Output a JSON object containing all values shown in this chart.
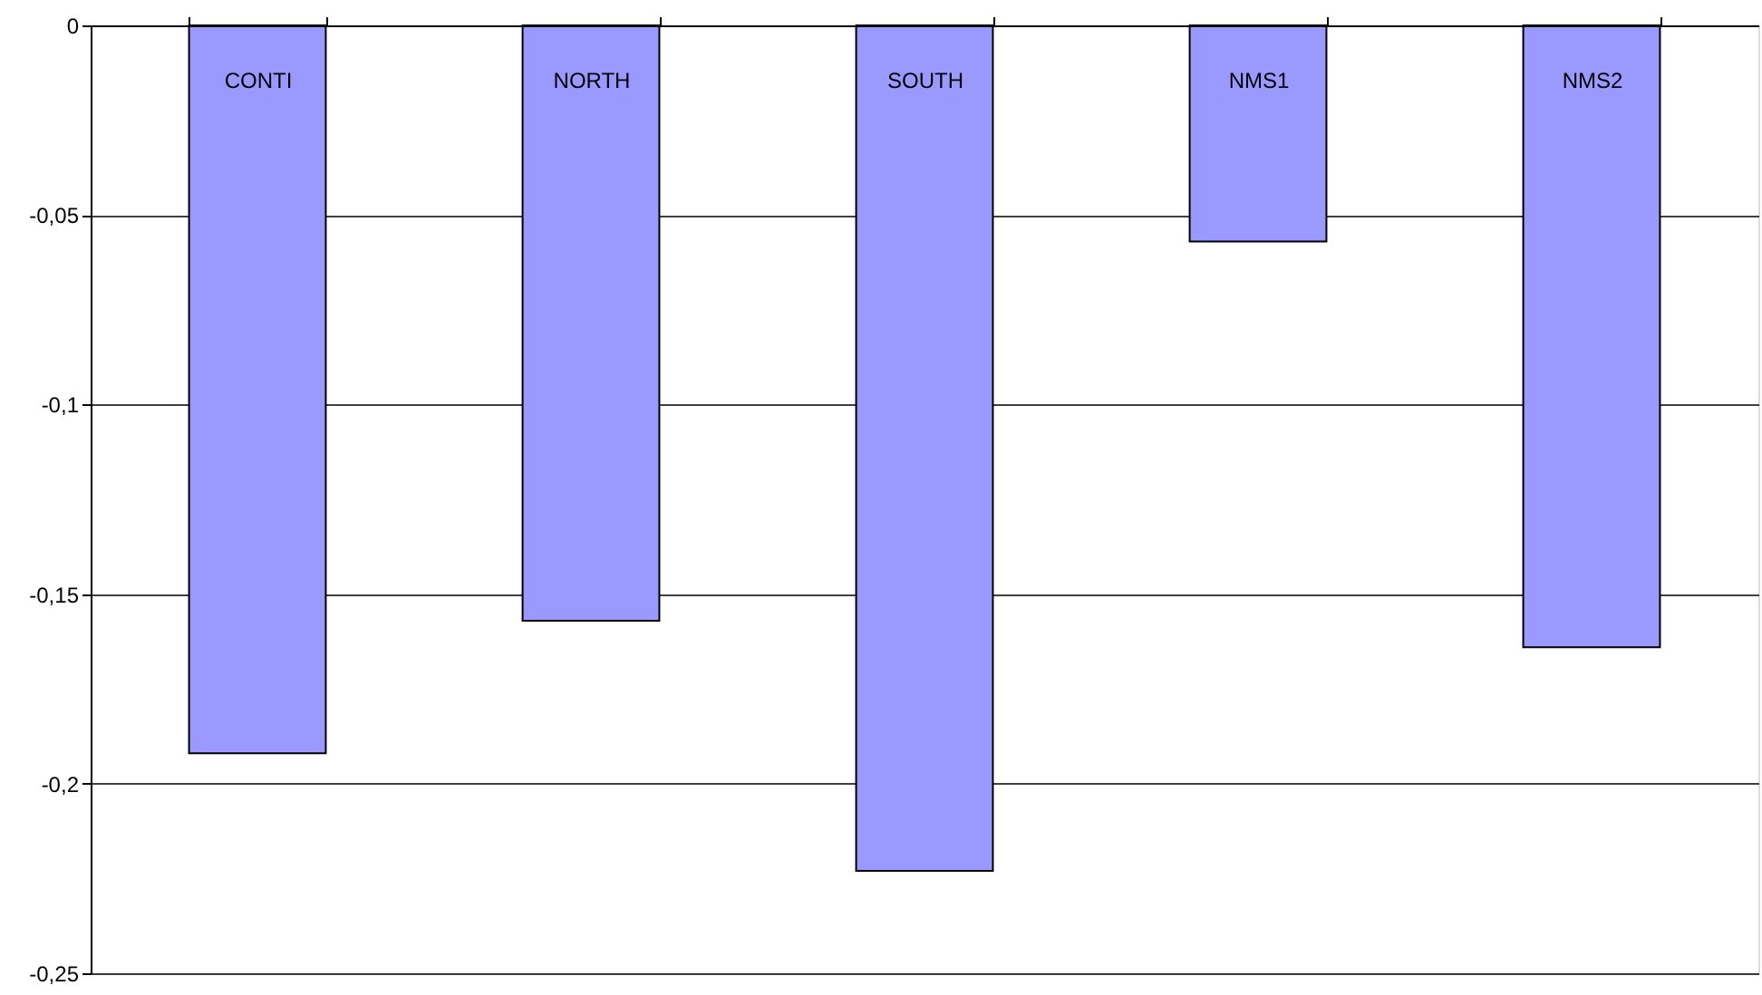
{
  "chart_data": {
    "type": "bar",
    "categories": [
      "CONTI",
      "NORTH",
      "SOUTH",
      "NMS1",
      "NMS2"
    ],
    "values": [
      -0.192,
      -0.157,
      -0.223,
      -0.057,
      -0.164
    ],
    "color": "#9999ff",
    "ylim": [
      -0.25,
      0
    ],
    "yticks": [
      0,
      {
        "value": -0.05,
        "label": "-0,05"
      },
      {
        "value": -0.1,
        "label": "-0,1"
      },
      {
        "value": -0.15,
        "label": "-0,15"
      },
      {
        "value": -0.2,
        "label": "-0,2"
      },
      {
        "value": -0.25,
        "label": "-0,25"
      }
    ],
    "grid": "y"
  }
}
